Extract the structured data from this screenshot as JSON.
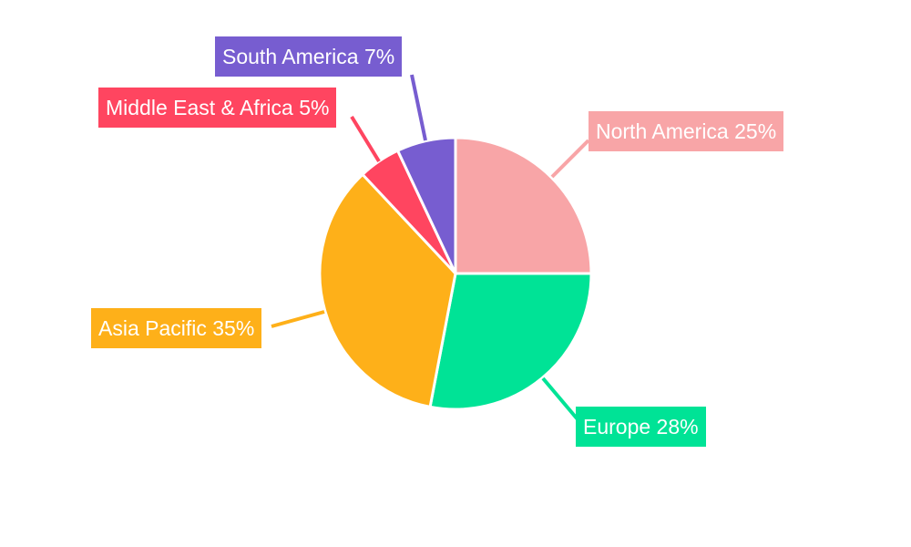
{
  "chart_data": {
    "type": "pie",
    "title": "",
    "start_angle": "top",
    "direction": "clockwise",
    "legend": "none",
    "slices": [
      {
        "name": "North America",
        "value": 25,
        "color": "#F8A5A7"
      },
      {
        "name": "Europe",
        "value": 28,
        "color": "#00E396"
      },
      {
        "name": "Asia Pacific",
        "value": 35,
        "color": "#FEB019"
      },
      {
        "name": "Middle East & Africa",
        "value": 5,
        "color": "#FF4560"
      },
      {
        "name": "South America",
        "value": 7,
        "color": "#775DD0"
      }
    ]
  }
}
